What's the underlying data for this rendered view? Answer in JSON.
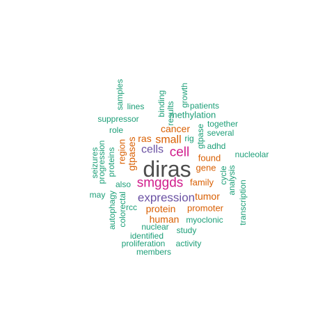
{
  "palette": {
    "gray": "#4d4d4d",
    "magenta": "#d01c8b",
    "purple": "#6a51a3",
    "orange": "#d95f02",
    "teal": "#1b9e77"
  },
  "chart_data": {
    "type": "wordcloud",
    "words": [
      {
        "text": "diras",
        "color": "gray"
      },
      {
        "text": "smggds",
        "color": "magenta"
      },
      {
        "text": "cell",
        "color": "magenta"
      },
      {
        "text": "expression",
        "color": "purple"
      },
      {
        "text": "cells",
        "color": "purple"
      },
      {
        "text": "cancer",
        "color": "orange"
      },
      {
        "text": "ras",
        "color": "orange"
      },
      {
        "text": "small",
        "color": "orange"
      },
      {
        "text": "gtpases",
        "color": "orange"
      },
      {
        "text": "tumor",
        "color": "orange"
      },
      {
        "text": "protein",
        "color": "orange"
      },
      {
        "text": "human",
        "color": "orange"
      },
      {
        "text": "promoter",
        "color": "orange"
      },
      {
        "text": "family",
        "color": "orange"
      },
      {
        "text": "found",
        "color": "orange"
      },
      {
        "text": "gene",
        "color": "orange"
      },
      {
        "text": "region",
        "color": "orange"
      },
      {
        "text": "gtpase",
        "color": "teal"
      },
      {
        "text": "rig",
        "color": "teal"
      },
      {
        "text": "adhd",
        "color": "teal"
      },
      {
        "text": "methylation",
        "color": "teal"
      },
      {
        "text": "patients",
        "color": "teal"
      },
      {
        "text": "together",
        "color": "teal"
      },
      {
        "text": "several",
        "color": "teal"
      },
      {
        "text": "nucleolar",
        "color": "teal"
      },
      {
        "text": "lines",
        "color": "teal"
      },
      {
        "text": "results",
        "color": "teal"
      },
      {
        "text": "binding",
        "color": "teal"
      },
      {
        "text": "growth",
        "color": "teal"
      },
      {
        "text": "samples",
        "color": "teal"
      },
      {
        "text": "suppressor",
        "color": "teal"
      },
      {
        "text": "role",
        "color": "teal"
      },
      {
        "text": "proteins",
        "color": "teal"
      },
      {
        "text": "progression",
        "color": "teal"
      },
      {
        "text": "seizures",
        "color": "teal"
      },
      {
        "text": "also",
        "color": "teal"
      },
      {
        "text": "may",
        "color": "teal"
      },
      {
        "text": "rcc",
        "color": "teal"
      },
      {
        "text": "colorectal",
        "color": "teal"
      },
      {
        "text": "autophagy",
        "color": "teal"
      },
      {
        "text": "nuclear",
        "color": "teal"
      },
      {
        "text": "identified",
        "color": "teal"
      },
      {
        "text": "proliferation",
        "color": "teal"
      },
      {
        "text": "members",
        "color": "teal"
      },
      {
        "text": "activity",
        "color": "teal"
      },
      {
        "text": "study",
        "color": "teal"
      },
      {
        "text": "myoclonic",
        "color": "teal"
      },
      {
        "text": "cycle",
        "color": "teal"
      },
      {
        "text": "analysis",
        "color": "teal"
      },
      {
        "text": "transcription",
        "color": "teal"
      }
    ]
  }
}
